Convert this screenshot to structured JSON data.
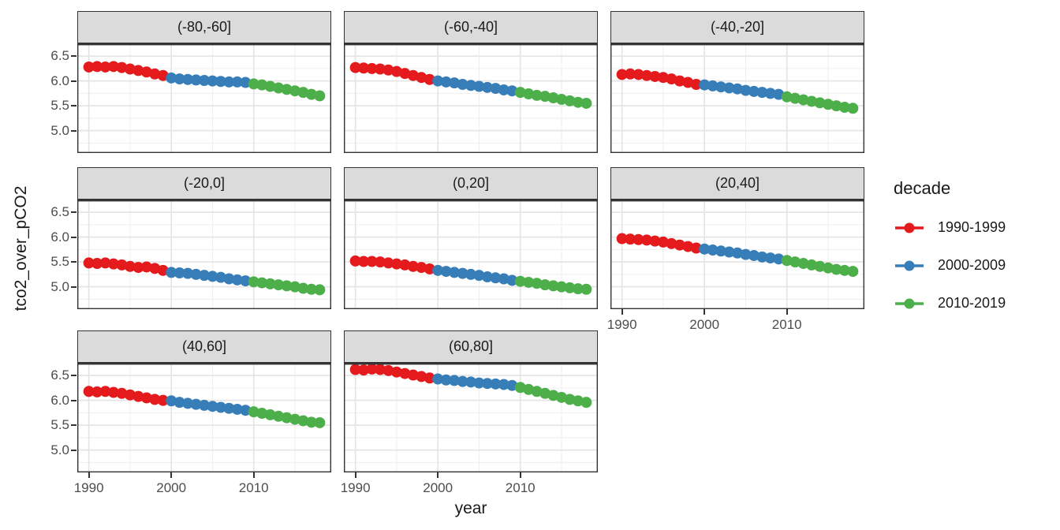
{
  "axes_titles": {
    "x": "year",
    "y": "tco2_over_pCO2"
  },
  "legend": {
    "title": "decade",
    "entries": [
      {
        "label": "1990-1999",
        "color": "#E41A1C"
      },
      {
        "label": "2000-2009",
        "color": "#377EB8"
      },
      {
        "label": "2010-2019",
        "color": "#4DAF4A"
      }
    ]
  },
  "chart_data": {
    "type": "scatter",
    "title": "",
    "xlabel": "year",
    "ylabel": "tco2_over_pCO2",
    "facet_variable": "latitude band",
    "legend_position": "right",
    "grid": true,
    "x": [
      1990,
      1991,
      1992,
      1993,
      1994,
      1995,
      1996,
      1997,
      1998,
      1999,
      2000,
      2001,
      2002,
      2003,
      2004,
      2005,
      2006,
      2007,
      2008,
      2009,
      2010,
      2011,
      2012,
      2013,
      2014,
      2015,
      2016,
      2017,
      2018
    ],
    "series": [
      {
        "name": "1990-1999",
        "color": "#E41A1C",
        "year_range": [
          1990,
          1999
        ]
      },
      {
        "name": "2000-2009",
        "color": "#377EB8",
        "year_range": [
          2000,
          2009
        ]
      },
      {
        "name": "2010-2019",
        "color": "#4DAF4A",
        "year_range": [
          2010,
          2018
        ]
      }
    ],
    "axes": {
      "x": {
        "domain": [
          1988.6,
          2019.4
        ],
        "ticks": [
          1990,
          2000,
          2010
        ],
        "tick_labels": [
          "1990",
          "2000",
          "2010"
        ],
        "minor": [
          1995,
          2005,
          2015
        ]
      },
      "y": {
        "domain": [
          4.55,
          6.74
        ],
        "ticks": [
          6.5,
          6.0,
          5.5,
          5.0
        ],
        "tick_labels": [
          "6.5",
          "6.0",
          "5.5",
          "5.0"
        ],
        "minor": [
          6.25,
          5.75,
          5.25,
          4.75
        ]
      }
    },
    "facets": [
      {
        "label": "(-80,-60]",
        "values": [
          6.28,
          6.29,
          6.28,
          6.29,
          6.27,
          6.24,
          6.21,
          6.18,
          6.14,
          6.11,
          6.06,
          6.04,
          6.03,
          6.02,
          6.01,
          6.0,
          5.99,
          5.98,
          5.98,
          5.97,
          5.94,
          5.92,
          5.89,
          5.86,
          5.83,
          5.8,
          5.77,
          5.73,
          5.7
        ]
      },
      {
        "label": "(-60,-40]",
        "values": [
          6.27,
          6.26,
          6.25,
          6.24,
          6.22,
          6.19,
          6.15,
          6.11,
          6.07,
          6.03,
          6.0,
          5.98,
          5.96,
          5.93,
          5.91,
          5.89,
          5.87,
          5.85,
          5.82,
          5.8,
          5.77,
          5.74,
          5.71,
          5.69,
          5.66,
          5.63,
          5.6,
          5.57,
          5.55
        ]
      },
      {
        "label": "(-40,-20]",
        "values": [
          6.13,
          6.14,
          6.13,
          6.11,
          6.09,
          6.07,
          6.04,
          6.0,
          5.97,
          5.93,
          5.92,
          5.9,
          5.88,
          5.86,
          5.84,
          5.81,
          5.79,
          5.77,
          5.75,
          5.73,
          5.68,
          5.65,
          5.62,
          5.59,
          5.56,
          5.53,
          5.5,
          5.47,
          5.45
        ]
      },
      {
        "label": "(-20,0]",
        "values": [
          5.48,
          5.47,
          5.48,
          5.46,
          5.44,
          5.41,
          5.39,
          5.4,
          5.37,
          5.33,
          5.29,
          5.28,
          5.27,
          5.25,
          5.23,
          5.21,
          5.19,
          5.16,
          5.14,
          5.12,
          5.1,
          5.08,
          5.06,
          5.04,
          5.02,
          5.0,
          4.97,
          4.95,
          4.94
        ]
      },
      {
        "label": "(0,20]",
        "values": [
          5.52,
          5.51,
          5.51,
          5.5,
          5.48,
          5.46,
          5.44,
          5.41,
          5.39,
          5.36,
          5.33,
          5.31,
          5.29,
          5.27,
          5.25,
          5.23,
          5.2,
          5.18,
          5.16,
          5.13,
          5.11,
          5.09,
          5.07,
          5.04,
          5.02,
          5.0,
          4.98,
          4.96,
          4.95
        ]
      },
      {
        "label": "(20,40]",
        "values": [
          5.97,
          5.96,
          5.95,
          5.94,
          5.92,
          5.9,
          5.87,
          5.84,
          5.81,
          5.78,
          5.76,
          5.74,
          5.72,
          5.7,
          5.68,
          5.65,
          5.63,
          5.6,
          5.58,
          5.56,
          5.53,
          5.5,
          5.47,
          5.44,
          5.41,
          5.38,
          5.35,
          5.33,
          5.31
        ]
      },
      {
        "label": "(40,60]",
        "values": [
          6.18,
          6.17,
          6.18,
          6.16,
          6.14,
          6.11,
          6.08,
          6.05,
          6.02,
          6.0,
          5.99,
          5.96,
          5.94,
          5.92,
          5.9,
          5.88,
          5.86,
          5.84,
          5.82,
          5.8,
          5.77,
          5.74,
          5.71,
          5.68,
          5.65,
          5.62,
          5.59,
          5.56,
          5.55
        ]
      },
      {
        "label": "(60,80]",
        "values": [
          6.62,
          6.61,
          6.63,
          6.62,
          6.6,
          6.57,
          6.54,
          6.51,
          6.48,
          6.45,
          6.43,
          6.41,
          6.4,
          6.38,
          6.37,
          6.35,
          6.34,
          6.33,
          6.32,
          6.3,
          6.26,
          6.22,
          6.18,
          6.14,
          6.1,
          6.06,
          6.02,
          5.99,
          5.96
        ]
      }
    ]
  },
  "style": {
    "strip_fill": "#DBDBDB",
    "panel_border": "#333333",
    "grid_major": "#E5E5E5",
    "grid_minor": "#EFEFEF",
    "tick_text_color": "#4D4D4D",
    "point_radius": 7
  }
}
